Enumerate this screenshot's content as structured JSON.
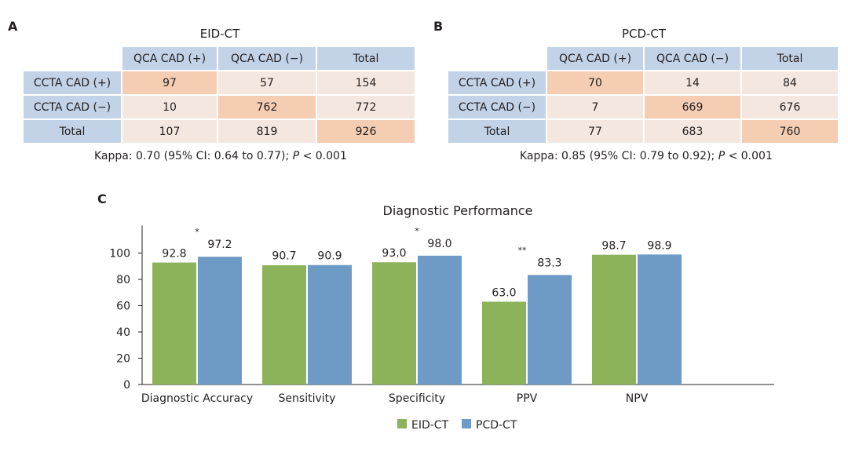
{
  "panel_a": {
    "letter": "A",
    "title": "EID-CT",
    "headers": [
      "QCA CAD (+)",
      "QCA CAD (−)",
      "Total"
    ],
    "rows": [
      {
        "label": "CCTA CAD (+)",
        "values": [
          "97",
          "57",
          "154"
        ]
      },
      {
        "label": "CCTA CAD (−)",
        "values": [
          "10",
          "762",
          "772"
        ]
      },
      {
        "label": "Total",
        "values": [
          "107",
          "819",
          "926"
        ]
      }
    ],
    "kappa_prefix": "Kappa: 0.70 (95% CI: 0.64 to 0.77); ",
    "kappa_p": "P",
    "kappa_suffix": " < 0.001"
  },
  "panel_b": {
    "letter": "B",
    "title": "PCD-CT",
    "headers": [
      "QCA CAD (+)",
      "QCA CAD (−)",
      "Total"
    ],
    "rows": [
      {
        "label": "CCTA CAD (+)",
        "values": [
          "70",
          "14",
          "84"
        ]
      },
      {
        "label": "CCTA CAD (−)",
        "values": [
          "7",
          "669",
          "676"
        ]
      },
      {
        "label": "Total",
        "values": [
          "77",
          "683",
          "760"
        ]
      }
    ],
    "kappa_prefix": "Kappa: 0.85 (95% CI: 0.79 to 0.92); ",
    "kappa_p": "P",
    "kappa_suffix": " < 0.001"
  },
  "panel_c": {
    "letter": "C"
  },
  "chart_data": {
    "type": "bar",
    "title": "Diagnostic Performance",
    "categories": [
      "Diagnostic Accuracy",
      "Sensitivity",
      "Specificity",
      "PPV",
      "NPV"
    ],
    "series": [
      {
        "name": "EID-CT",
        "color": "#8db35a",
        "values": [
          92.8,
          90.7,
          93.0,
          63.0,
          98.7
        ]
      },
      {
        "name": "PCD-CT",
        "color": "#6e9bc5",
        "values": [
          97.2,
          90.9,
          98.0,
          83.3,
          98.9
        ]
      }
    ],
    "significance": [
      "*",
      "",
      "*",
      "**",
      ""
    ],
    "yticks": [
      0,
      20,
      40,
      60,
      80,
      100
    ],
    "ylim": [
      0,
      121
    ],
    "xlabel": "",
    "ylabel": ""
  }
}
